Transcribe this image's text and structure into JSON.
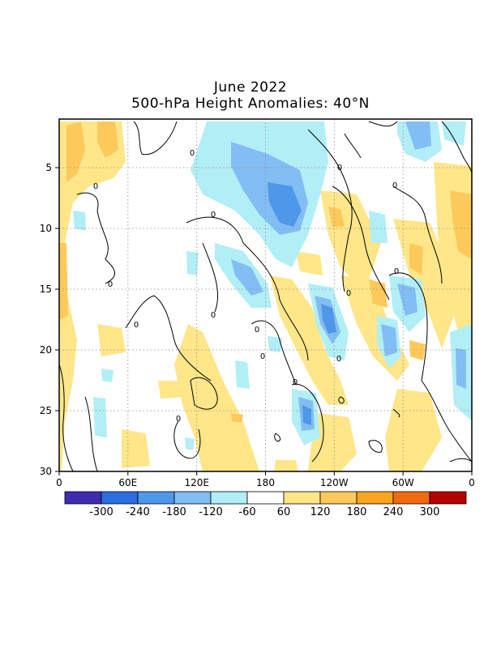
{
  "title": "June 2022",
  "subtitle": "500-hPa Height Anomalies: 40°N",
  "chart_data": {
    "type": "heatmap",
    "description_axes": "Hovmoller: longitude (x) vs day of month (y)",
    "x_ticks": [
      "0",
      "60E",
      "120E",
      "180",
      "120W",
      "60W",
      "0"
    ],
    "x_tick_values": [
      0,
      60,
      120,
      180,
      240,
      300,
      360
    ],
    "y_ticks": [
      "5",
      "10",
      "15",
      "20",
      "25",
      "30"
    ],
    "y_tick_values": [
      5,
      10,
      15,
      20,
      25,
      30
    ],
    "ylim": [
      1,
      30
    ],
    "xlim": [
      0,
      360
    ],
    "grid": "dotted",
    "contour_label": "0",
    "colorbar": {
      "labels": [
        "-300",
        "-240",
        "-180",
        "-120",
        "-60",
        "60",
        "120",
        "180",
        "240",
        "300"
      ],
      "colors": [
        "#3f2bb0",
        "#2a6ee0",
        "#4e98ea",
        "#82bdf3",
        "#b2eef6",
        "#ffffff",
        "#fee689",
        "#fdc95a",
        "#f9a51e",
        "#f26a10",
        "#b40000"
      ]
    },
    "features": [
      {
        "lon": 225,
        "day": 18,
        "value": -200
      },
      {
        "lon": 170,
        "day": 7.5,
        "value": -200
      },
      {
        "lon": 288,
        "day": 19,
        "value": -200
      },
      {
        "lon": 302,
        "day": 3,
        "value": -200
      },
      {
        "lon": 214,
        "day": 26.5,
        "value": -180
      },
      {
        "lon": 160,
        "day": 15,
        "value": -150
      },
      {
        "lon": 350,
        "day": 22,
        "value": -150
      },
      {
        "lon": 312,
        "day": 16,
        "value": -150
      },
      {
        "lon": 12,
        "day": 3,
        "value": 120
      },
      {
        "lon": 350,
        "day": 10,
        "value": 150
      },
      {
        "lon": 300,
        "day": 12,
        "value": 120
      },
      {
        "lon": 268,
        "day": 13,
        "value": 120
      },
      {
        "lon": 250,
        "day": 9,
        "value": 120
      },
      {
        "lon": 262,
        "day": 15,
        "value": 180
      },
      {
        "lon": 303,
        "day": 20,
        "value": 140
      },
      {
        "lon": 160,
        "day": 25,
        "value": 100
      },
      {
        "lon": 233,
        "day": 21,
        "value": 100
      }
    ]
  }
}
